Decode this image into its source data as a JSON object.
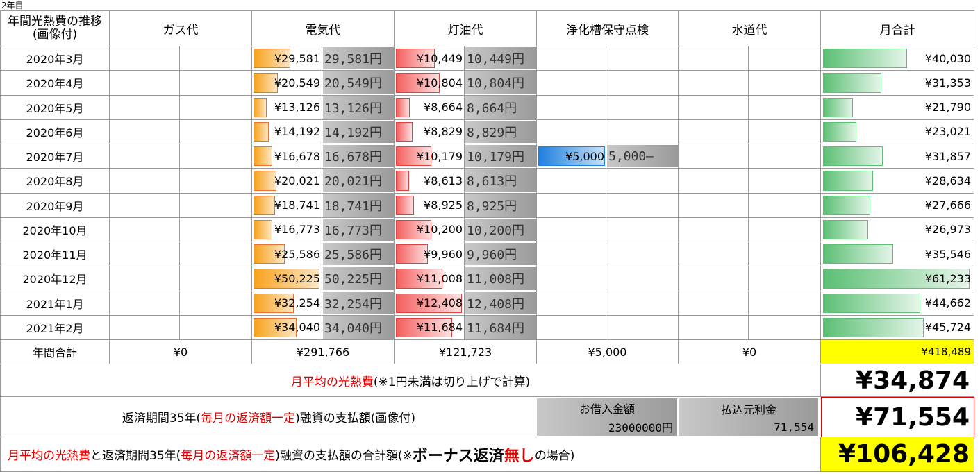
{
  "sheet_label": "2年目",
  "header": {
    "title": "年間光熱費の推移(画像付)",
    "columns": [
      "ガス代",
      "電気代",
      "灯油代",
      "浄化槽保守点検",
      "水道代"
    ],
    "total": "月合計"
  },
  "rows": [
    {
      "month": "2020年3月",
      "elec": "¥29,581",
      "elec_img": "29,581円",
      "kero": "¥10,449",
      "kero_img": "10,449円",
      "total": "¥40,030"
    },
    {
      "month": "2020年4月",
      "elec": "¥20,549",
      "elec_img": "20,549円",
      "kero": "¥10,804",
      "kero_img": "10,804円",
      "total": "¥31,353"
    },
    {
      "month": "2020年5月",
      "elec": "¥13,126",
      "elec_img": "13,126円",
      "kero": "¥8,664",
      "kero_img": "8,664円",
      "total": "¥21,790"
    },
    {
      "month": "2020年6月",
      "elec": "¥14,192",
      "elec_img": "14,192円",
      "kero": "¥8,829",
      "kero_img": "8,829円",
      "total": "¥23,021"
    },
    {
      "month": "2020年7月",
      "elec": "¥16,678",
      "elec_img": "16,678円",
      "kero": "¥10,179",
      "kero_img": "10,179円",
      "septic": "¥5,000",
      "septic_img": "5,000—",
      "total": "¥31,857"
    },
    {
      "month": "2020年8月",
      "elec": "¥20,021",
      "elec_img": "20,021円",
      "kero": "¥8,613",
      "kero_img": "8,613円",
      "total": "¥28,634"
    },
    {
      "month": "2020年9月",
      "elec": "¥18,741",
      "elec_img": "18,741円",
      "kero": "¥8,925",
      "kero_img": "8,925円",
      "total": "¥27,666"
    },
    {
      "month": "2020年10月",
      "elec": "¥16,773",
      "elec_img": "16,773円",
      "kero": "¥10,200",
      "kero_img": "10,200円",
      "total": "¥26,973"
    },
    {
      "month": "2020年11月",
      "elec": "¥25,586",
      "elec_img": "25,586円",
      "kero": "¥9,960",
      "kero_img": "9,960円",
      "total": "¥35,546"
    },
    {
      "month": "2020年12月",
      "elec": "¥50,225",
      "elec_img": "50,225円",
      "kero": "¥11,008",
      "kero_img": "11,008円",
      "total": "¥61,233"
    },
    {
      "month": "2021年1月",
      "elec": "¥32,254",
      "elec_img": "32,254円",
      "kero": "¥12,408",
      "kero_img": "12,408円",
      "total": "¥44,662"
    },
    {
      "month": "2021年2月",
      "elec": "¥34,040",
      "elec_img": "34,040円",
      "kero": "¥11,684",
      "kero_img": "11,684円",
      "total": "¥45,724"
    }
  ],
  "annual": {
    "label": "年間合計",
    "values": [
      "¥0",
      "¥291,766",
      "¥121,723",
      "¥5,000",
      "¥0"
    ],
    "total": "¥418,489"
  },
  "average": {
    "label": [
      {
        "text": "月平均の光熱費",
        "style": "red"
      },
      {
        "text": "(※1円未満は切り上げで計算)",
        "style": "plain"
      }
    ],
    "value": "¥34,874"
  },
  "loan": {
    "label": [
      {
        "text": "返済期間35年(",
        "style": "plain"
      },
      {
        "text": "毎月の返済額一定",
        "style": "red"
      },
      {
        "text": ")融資の支払額(画像付)",
        "style": "plain"
      }
    ],
    "image1": [
      "お借入金額",
      "23000000円"
    ],
    "image2": [
      "払込元利金",
      "71,554"
    ],
    "value": "¥71,554"
  },
  "grand": {
    "label": [
      {
        "text": "月平均の光熱費",
        "style": "red"
      },
      {
        "text": "と返済期間35年(",
        "style": "plain"
      },
      {
        "text": "毎月の返済額一定",
        "style": "red"
      },
      {
        "text": ")融資の支払額の合計額(※",
        "style": "plain"
      },
      {
        "text": "ボーナス返済",
        "style": "bold"
      },
      {
        "text": "無し",
        "style": "boldred"
      },
      {
        "text": "の場合)",
        "style": "plain"
      }
    ],
    "value": "¥106,428"
  }
}
